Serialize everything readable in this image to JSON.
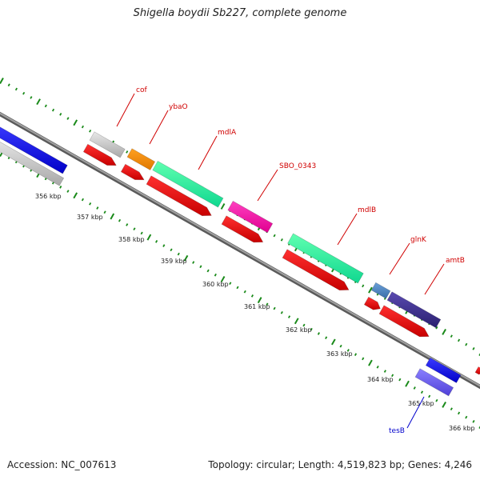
{
  "title": "Shigella boydii Sb227, complete genome",
  "footer": {
    "accession": "Accession: NC_007613",
    "summary": "Topology: circular; Length: 4,519,823 bp; Genes: 4,246"
  },
  "colors": {
    "backbone": "#8a8a8a",
    "tick": "#1a8a1a",
    "label_red": "#d00000",
    "label_blue": "#0000cc"
  },
  "kbp_labels": [
    "356 kbp",
    "357 kbp",
    "358 kbp",
    "359 kbp",
    "360 kbp",
    "361 kbp",
    "362 kbp",
    "363 kbp",
    "364 kbp",
    "365 kbp",
    "366 kbp"
  ],
  "gene_labels": [
    "cof",
    "ybaO",
    "mdlA",
    "SBO_0343",
    "mdlB",
    "glnK",
    "amtB",
    "tesB"
  ]
}
